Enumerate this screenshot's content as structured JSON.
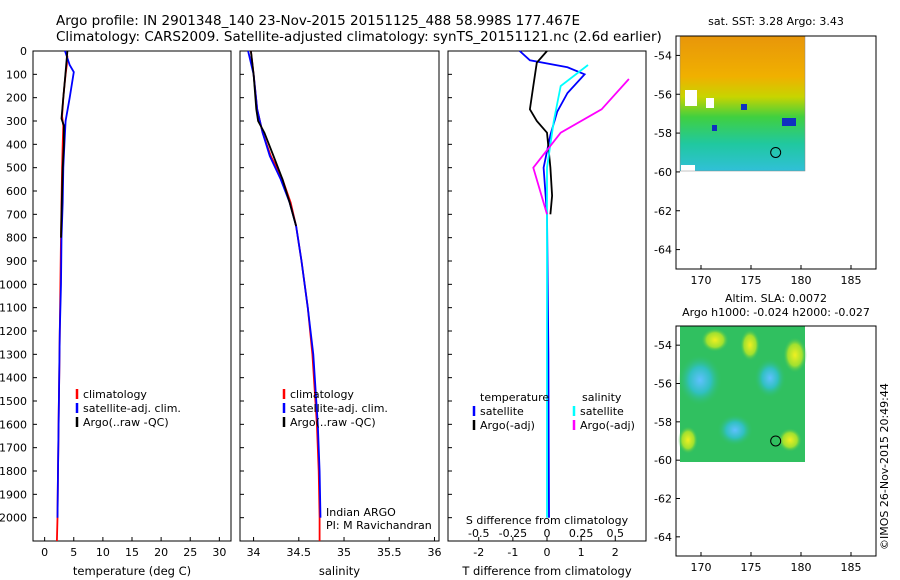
{
  "title_line1": "Argo profile: IN 2901348_140 23-Nov-2015 20151125_488 58.998S 177.467E",
  "title_line2": "Climatology: CARS2009. Satellite-adjusted climatology: synTS_20151121.nc (2.6d earlier)",
  "timestamp": "©IMOS 26-Nov-2015 20:49:44",
  "depth_ticks": [
    0,
    100,
    200,
    300,
    400,
    500,
    600,
    700,
    800,
    900,
    1000,
    1100,
    1200,
    1300,
    1400,
    1500,
    1600,
    1700,
    1800,
    1900,
    2000
  ],
  "colors": {
    "climatology": "#ff0000",
    "satellite": "#0000ff",
    "argo": "#000000",
    "salinity_satellite": "#00ffff",
    "salinity_argo": "#ff00ff"
  },
  "chart_data": [
    {
      "type": "line",
      "xlabel": "temperature (deg C)",
      "xticks": [
        "0",
        "5",
        "10",
        "15",
        "20",
        "25",
        "30"
      ],
      "xlim": [
        -2,
        32
      ],
      "ylim": [
        2100,
        0
      ],
      "legend": [
        "climatology",
        "satellite-adj. clim.",
        "Argo(..raw -QC)"
      ],
      "series": [
        {
          "name": "climatology",
          "color": "#ff0000",
          "points": [
            [
              3.9,
              20
            ],
            [
              3.8,
              60
            ],
            [
              3.6,
              100
            ],
            [
              3.4,
              150
            ],
            [
              3.2,
              200
            ],
            [
              3.0,
              280
            ],
            [
              3.2,
              320
            ],
            [
              3.1,
              400
            ],
            [
              3.0,
              500
            ],
            [
              2.9,
              650
            ],
            [
              2.8,
              800
            ],
            [
              2.7,
              1000
            ],
            [
              2.6,
              1200
            ],
            [
              2.5,
              1400
            ],
            [
              2.4,
              1600
            ],
            [
              2.3,
              1800
            ],
            [
              2.2,
              2000
            ],
            [
              2.1,
              2100
            ]
          ]
        },
        {
          "name": "satellite-adj. clim.",
          "color": "#0000ff",
          "points": [
            [
              3.5,
              0
            ],
            [
              4.3,
              60
            ],
            [
              5.0,
              90
            ],
            [
              4.3,
              200
            ],
            [
              3.6,
              300
            ],
            [
              3.4,
              400
            ],
            [
              3.2,
              500
            ],
            [
              3.1,
              650
            ],
            [
              2.9,
              800
            ],
            [
              2.8,
              1000
            ],
            [
              2.6,
              1200
            ],
            [
              2.5,
              1400
            ],
            [
              2.4,
              1600
            ],
            [
              2.3,
              1800
            ],
            [
              2.2,
              2000
            ]
          ]
        },
        {
          "name": "Argo(..raw -QC)",
          "color": "#000000",
          "points": [
            [
              3.9,
              0
            ],
            [
              3.7,
              60
            ],
            [
              3.5,
              120
            ],
            [
              3.2,
              200
            ],
            [
              2.9,
              290
            ],
            [
              3.3,
              320
            ],
            [
              3.3,
              400
            ],
            [
              3.1,
              500
            ],
            [
              3.0,
              600
            ],
            [
              2.9,
              700
            ],
            [
              2.8,
              800
            ]
          ]
        }
      ],
      "annotations": []
    },
    {
      "type": "line",
      "xlabel": "salinity",
      "xticks": [
        "34",
        "34.5",
        "35",
        "35.5",
        "36"
      ],
      "xlim": [
        33.85,
        36.05
      ],
      "ylim": [
        2100,
        0
      ],
      "legend": [
        "climatology",
        "satellite-adj. clim.",
        "Argo(..raw -QC)"
      ],
      "series": [
        {
          "name": "climatology",
          "color": "#ff0000",
          "points": [
            [
              33.97,
              0
            ],
            [
              34.0,
              100
            ],
            [
              34.04,
              250
            ],
            [
              34.1,
              350
            ],
            [
              34.19,
              450
            ],
            [
              34.32,
              550
            ],
            [
              34.41,
              650
            ],
            [
              34.47,
              750
            ],
            [
              34.53,
              900
            ],
            [
              34.6,
              1100
            ],
            [
              34.65,
              1300
            ],
            [
              34.7,
              1600
            ],
            [
              34.72,
              1800
            ],
            [
              34.73,
              2000
            ],
            [
              34.73,
              2100
            ]
          ]
        },
        {
          "name": "satellite-adj. clim.",
          "color": "#0000ff",
          "points": [
            [
              33.94,
              0
            ],
            [
              34.0,
              100
            ],
            [
              34.04,
              250
            ],
            [
              34.1,
              350
            ],
            [
              34.18,
              450
            ],
            [
              34.3,
              550
            ],
            [
              34.4,
              650
            ],
            [
              34.47,
              750
            ],
            [
              34.53,
              900
            ],
            [
              34.6,
              1100
            ],
            [
              34.66,
              1300
            ],
            [
              34.71,
              1600
            ],
            [
              34.73,
              1800
            ],
            [
              34.74,
              2000
            ]
          ]
        },
        {
          "name": "Argo(..raw -QC)",
          "color": "#000000",
          "points": [
            [
              33.97,
              0
            ],
            [
              34.0,
              100
            ],
            [
              34.03,
              250
            ],
            [
              34.05,
              300
            ],
            [
              34.12,
              350
            ],
            [
              34.22,
              450
            ],
            [
              34.32,
              550
            ],
            [
              34.4,
              650
            ],
            [
              34.47,
              750
            ]
          ]
        }
      ],
      "annotations": [
        "Indian ARGO",
        "PI: M Ravichandran"
      ]
    },
    {
      "type": "line",
      "xlabel": "T difference from climatology",
      "xticks": [
        "-2",
        "-1",
        "0",
        "1",
        "2"
      ],
      "xlim": [
        -2.9,
        2.9
      ],
      "ylim": [
        2100,
        0
      ],
      "top_label": "S difference from climatology",
      "top_ticks": [
        "-0.5",
        "-0.25",
        "0",
        "0.25",
        "0.5"
      ],
      "legend_left_title": "temperature",
      "legend_right_title": "salinity",
      "legend": [
        "satellite",
        "Argo(-adj)",
        "satellite",
        "Argo(-adj)"
      ],
      "series": [
        {
          "name": "temperature satellite",
          "color": "#0000ff",
          "points": [
            [
              -0.8,
              0
            ],
            [
              -0.5,
              40
            ],
            [
              0.6,
              70
            ],
            [
              1.1,
              100
            ],
            [
              0.6,
              180
            ],
            [
              0.3,
              260
            ],
            [
              0.1,
              360
            ],
            [
              -0.1,
              500
            ],
            [
              0,
              700
            ],
            [
              0.02,
              1000
            ],
            [
              0.04,
              1300
            ],
            [
              0.05,
              1700
            ],
            [
              0.06,
              2000
            ]
          ]
        },
        {
          "name": "temperature Argo(-adj)",
          "color": "#000000",
          "points": [
            [
              0,
              0
            ],
            [
              -0.3,
              50
            ],
            [
              -0.4,
              150
            ],
            [
              -0.5,
              250
            ],
            [
              -0.3,
              300
            ],
            [
              0,
              350
            ],
            [
              0.1,
              500
            ],
            [
              0.15,
              620
            ],
            [
              0.1,
              700
            ]
          ]
        },
        {
          "name": "salinity satellite",
          "color": "#00ffff",
          "points": [
            [
              0.3,
              60
            ],
            [
              0.1,
              150
            ],
            [
              0.05,
              300
            ],
            [
              0,
              500
            ],
            [
              0,
              800
            ],
            [
              0,
              1200
            ],
            [
              0,
              1600
            ],
            [
              0,
              2000
            ]
          ]
        },
        {
          "name": "salinity Argo(-adj)",
          "color": "#ff00ff",
          "points": [
            [
              0.6,
              120
            ],
            [
              0.4,
              250
            ],
            [
              0.1,
              350
            ],
            [
              -0.1,
              500
            ],
            [
              0,
              700
            ]
          ]
        }
      ],
      "annotations": []
    },
    {
      "type": "heatmap",
      "title": "sat. SST: 3.28 Argo: 3.43",
      "xticks": [
        "170",
        "175",
        "180",
        "185"
      ],
      "yticks": [
        "-54",
        "-56",
        "-58",
        "-60",
        "-62",
        "-64"
      ],
      "xlim": [
        167.5,
        187.5
      ],
      "ylim": [
        -65,
        -53
      ],
      "marker": {
        "lon": 177.467,
        "lat": -58.998
      }
    },
    {
      "type": "heatmap",
      "title": "Altim. SLA: 0.0072",
      "subtitle": "Argo h1000: -0.024 h2000: -0.027",
      "xticks": [
        "170",
        "175",
        "180",
        "185"
      ],
      "yticks": [
        "-54",
        "-56",
        "-58",
        "-60",
        "-62",
        "-64"
      ],
      "xlim": [
        167.5,
        187.5
      ],
      "ylim": [
        -65,
        -53
      ],
      "marker": {
        "lon": 177.467,
        "lat": -58.998
      }
    }
  ]
}
